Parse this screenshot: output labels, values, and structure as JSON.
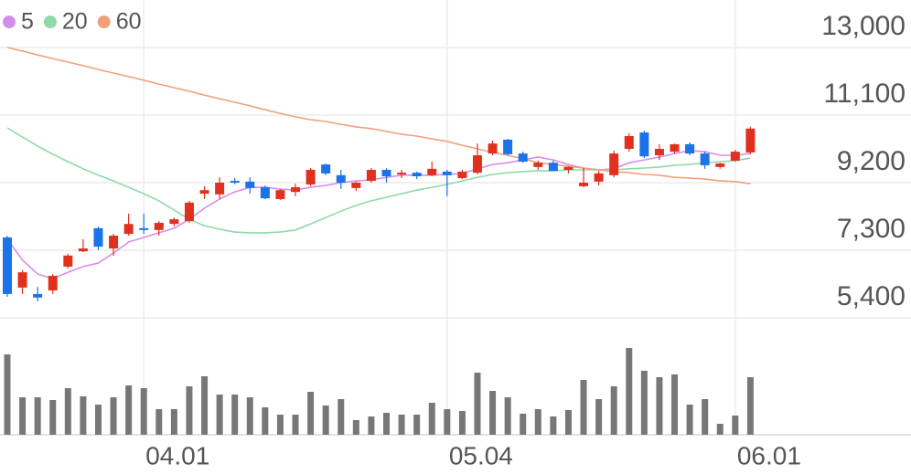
{
  "chart_data": {
    "type": "candlestick",
    "categories": [
      null,
      null,
      null,
      null,
      null,
      null,
      null,
      null,
      null,
      "04.01",
      null,
      null,
      null,
      null,
      null,
      null,
      null,
      null,
      null,
      null,
      null,
      null,
      null,
      null,
      null,
      null,
      null,
      null,
      null,
      "05.04",
      null,
      null,
      null,
      null,
      null,
      null,
      null,
      null,
      null,
      null,
      null,
      null,
      null,
      null,
      null,
      null,
      null,
      null,
      "06.01",
      null
    ],
    "candles": {
      "up_color": "#e0301e",
      "down_color": "#1a73e8",
      "open": [
        7660,
        6250,
        6070,
        6170,
        6840,
        7270,
        7920,
        7350,
        7760,
        7920,
        7870,
        8040,
        8120,
        8890,
        8870,
        9250,
        9230,
        9070,
        8740,
        8940,
        9150,
        9710,
        9410,
        9050,
        9250,
        9560,
        9430,
        9480,
        9410,
        9510,
        9330,
        9480,
        10020,
        10410,
        10020,
        9640,
        9760,
        9560,
        9100,
        9230,
        9410,
        10150,
        10610,
        9970,
        10070,
        10280,
        10020,
        9640,
        9820,
        10050
      ],
      "high": [
        7710,
        6740,
        6270,
        6630,
        7200,
        7610,
        7970,
        7760,
        8330,
        8330,
        8120,
        8220,
        8690,
        9100,
        9350,
        9330,
        9350,
        9120,
        9020,
        9170,
        9610,
        9740,
        9560,
        9230,
        9610,
        9610,
        9560,
        9510,
        9790,
        9560,
        9560,
        10300,
        10380,
        10430,
        10070,
        9820,
        9820,
        9660,
        9610,
        9530,
        10100,
        10590,
        10660,
        10280,
        10300,
        10330,
        10070,
        9760,
        10120,
        10770
      ],
      "low": [
        5990,
        6070,
        5860,
        6070,
        6790,
        7250,
        7300,
        7150,
        7710,
        7760,
        7710,
        7970,
        8070,
        8740,
        8740,
        9150,
        8890,
        8740,
        8710,
        8820,
        9100,
        9410,
        9020,
        8970,
        9200,
        9200,
        9330,
        9300,
        9380,
        8820,
        9300,
        9430,
        9970,
        9970,
        9760,
        9560,
        9530,
        9460,
        9070,
        9120,
        9350,
        10070,
        9890,
        9840,
        10020,
        9970,
        9590,
        9590,
        9790,
        10000
      ],
      "close": [
        6070,
        6680,
        5970,
        6580,
        7150,
        7350,
        7400,
        7710,
        8040,
        7870,
        8070,
        8170,
        8640,
        8990,
        9200,
        9200,
        9050,
        8760,
        8990,
        9070,
        9560,
        9460,
        9200,
        9200,
        9560,
        9380,
        9480,
        9380,
        9590,
        9410,
        9510,
        9970,
        10300,
        10000,
        9790,
        9760,
        9530,
        9640,
        9200,
        9460,
        10020,
        10510,
        9940,
        10150,
        10280,
        10020,
        9690,
        9740,
        10070,
        10720
      ]
    },
    "series": [
      {
        "name": "5",
        "color": "#d58ee6",
        "values": [
          7610,
          7020,
          6630,
          6500,
          6680,
          6840,
          6940,
          7220,
          7530,
          7660,
          7790,
          7920,
          8170,
          8480,
          8740,
          8940,
          9070,
          9070,
          9020,
          8990,
          9070,
          9120,
          9200,
          9250,
          9280,
          9350,
          9410,
          9410,
          9410,
          9430,
          9460,
          9590,
          9710,
          9760,
          9840,
          9920,
          9840,
          9710,
          9610,
          9560,
          9590,
          9760,
          9840,
          9920,
          10020,
          10100,
          10070,
          9970,
          9970,
          10020
        ]
      },
      {
        "name": "20",
        "color": "#8fd9a8",
        "values": [
          10740,
          10480,
          10230,
          10000,
          9790,
          9590,
          9410,
          9250,
          9070,
          8890,
          8690,
          8430,
          8170,
          7990,
          7890,
          7810,
          7790,
          7790,
          7810,
          7870,
          8040,
          8220,
          8400,
          8560,
          8690,
          8790,
          8890,
          8990,
          9070,
          9150,
          9250,
          9350,
          9430,
          9480,
          9510,
          9530,
          9530,
          9560,
          9560,
          9560,
          9560,
          9590,
          9610,
          9640,
          9690,
          9710,
          9760,
          9790,
          9820,
          9890
        ]
      },
      {
        "name": "60",
        "color": "#f0a07c",
        "values": [
          13000,
          12900,
          12790,
          12690,
          12590,
          12490,
          12380,
          12280,
          12180,
          12080,
          11970,
          11870,
          11770,
          11660,
          11560,
          11460,
          11360,
          11250,
          11150,
          11050,
          10970,
          10920,
          10840,
          10770,
          10720,
          10640,
          10560,
          10510,
          10430,
          10360,
          10250,
          10150,
          10050,
          9970,
          9870,
          9760,
          9710,
          9660,
          9610,
          9560,
          9510,
          9480,
          9430,
          9410,
          9350,
          9330,
          9300,
          9250,
          9230,
          9170
        ]
      }
    ],
    "volume": {
      "color": "#777777",
      "ylim": [
        0,
        100
      ],
      "values": [
        88,
        41,
        41,
        38,
        51,
        42,
        33,
        41,
        54,
        51,
        28,
        28,
        53,
        64,
        44,
        44,
        41,
        30,
        22,
        22,
        47,
        32,
        39,
        16,
        20,
        24,
        22,
        22,
        35,
        28,
        26,
        68,
        48,
        41,
        23,
        28,
        20,
        27,
        60,
        39,
        53,
        95,
        70,
        63,
        66,
        33,
        39,
        12,
        21,
        63
      ]
    },
    "ylim": [
      5400,
      13000
    ],
    "yticks": [
      {
        "value": 5400,
        "label": "5,400"
      },
      {
        "value": 7300,
        "label": "7,300"
      },
      {
        "value": 9200,
        "label": "9,200"
      },
      {
        "value": 11100,
        "label": "11,100"
      },
      {
        "value": 13000,
        "label": "13,000"
      }
    ],
    "grid": true
  }
}
